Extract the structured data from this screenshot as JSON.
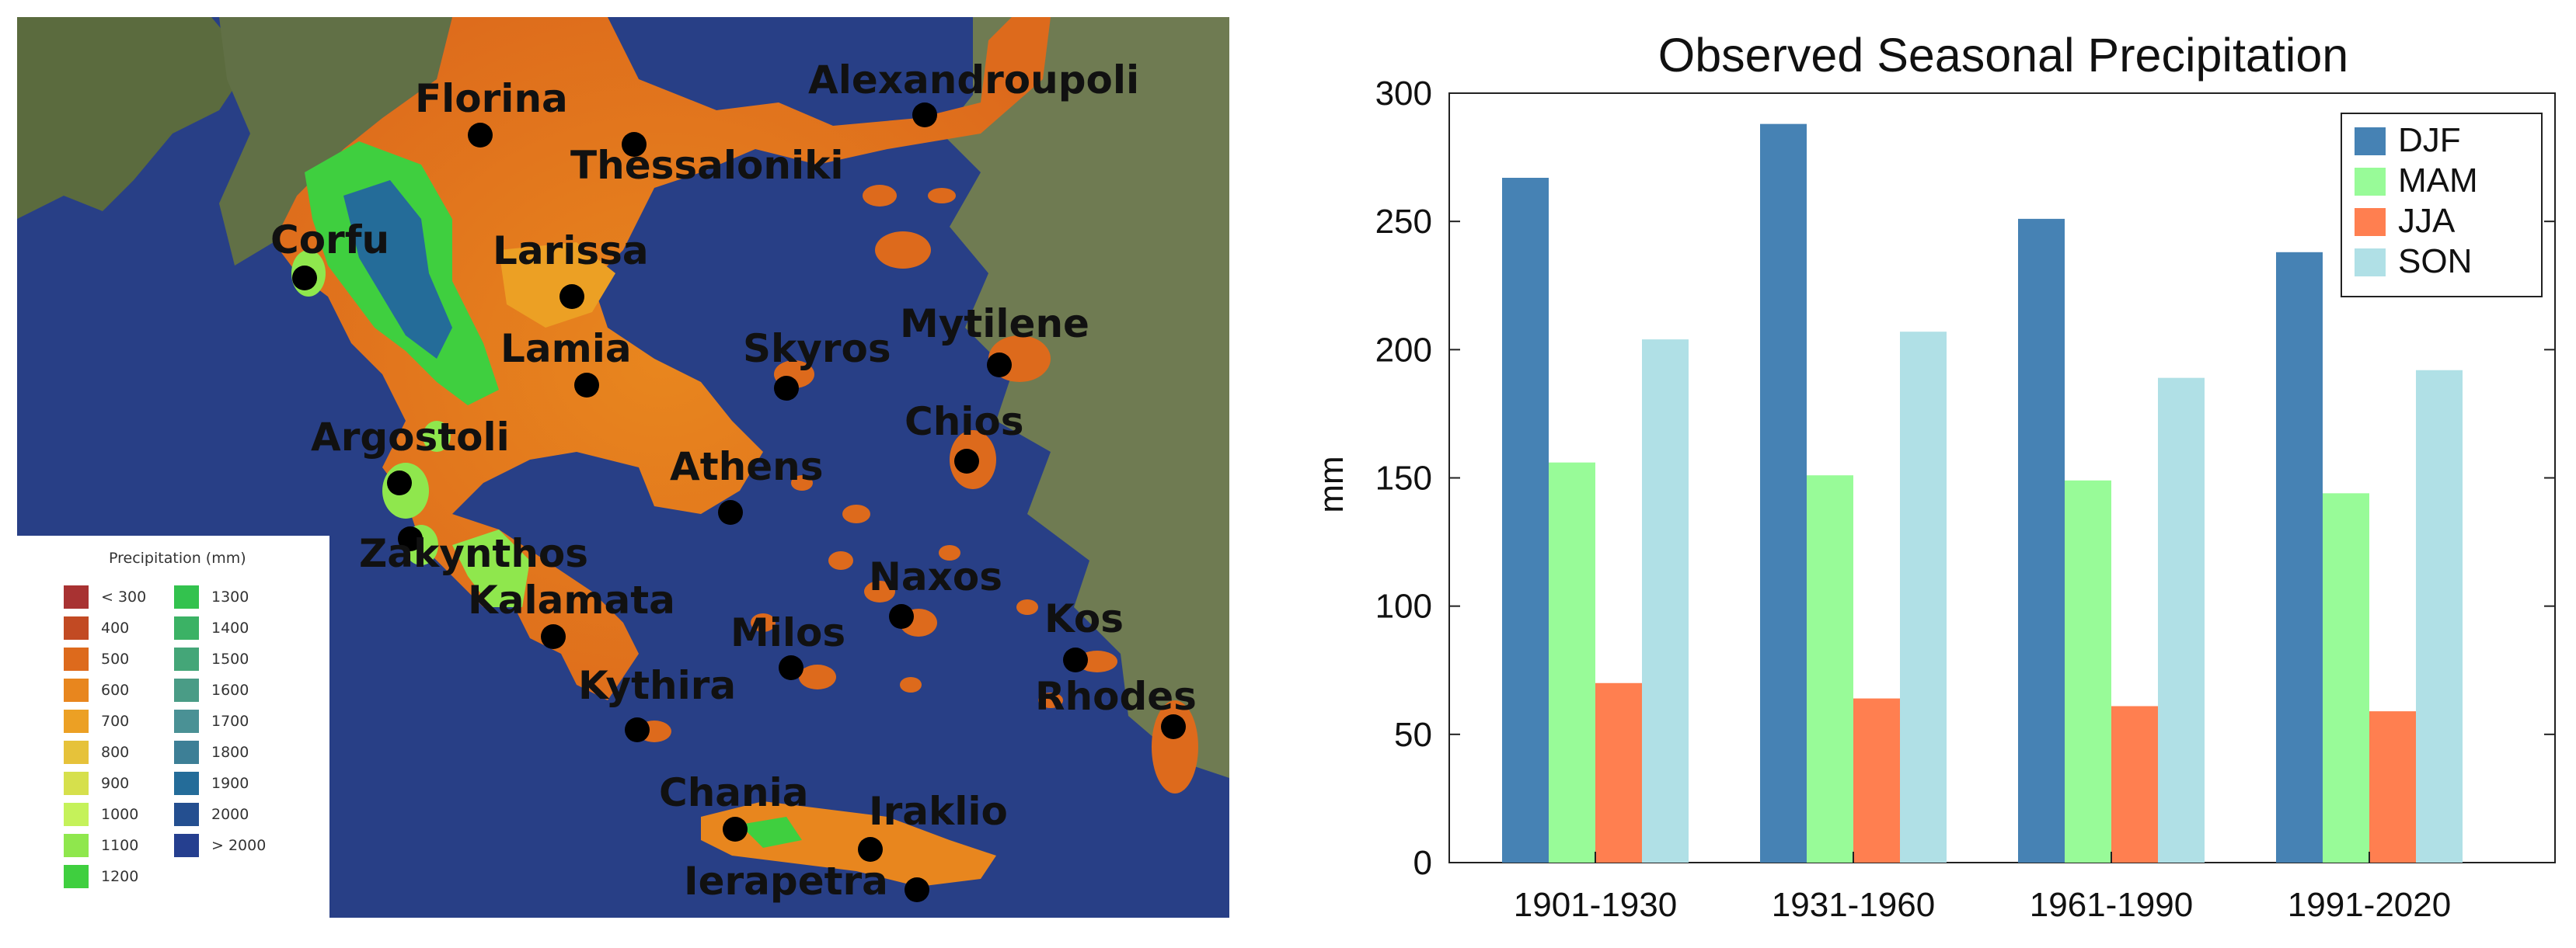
{
  "map": {
    "legend": {
      "title": "Precipitation (mm)",
      "column1": [
        {
          "label": "< 300",
          "color": "#a83232"
        },
        {
          "label": "400",
          "color": "#c24a23"
        },
        {
          "label": "500",
          "color": "#dd6a1c"
        },
        {
          "label": "600",
          "color": "#e8861e"
        },
        {
          "label": "700",
          "color": "#eca024"
        },
        {
          "label": "800",
          "color": "#e6c23a"
        },
        {
          "label": "900",
          "color": "#d6e04c"
        },
        {
          "label": "1000",
          "color": "#c5f25a"
        },
        {
          "label": "1100",
          "color": "#8fe74d"
        },
        {
          "label": "1200",
          "color": "#3fcf3f"
        }
      ],
      "column2": [
        {
          "label": "1300",
          "color": "#33c24e"
        },
        {
          "label": "1400",
          "color": "#3bb265"
        },
        {
          "label": "1500",
          "color": "#44a678"
        },
        {
          "label": "1600",
          "color": "#4a9c86"
        },
        {
          "label": "1700",
          "color": "#4a9195"
        },
        {
          "label": "1800",
          "color": "#3d7f96"
        },
        {
          "label": "1900",
          "color": "#246c99"
        },
        {
          "label": "2000",
          "color": "#244f90"
        },
        {
          "label": "> 2000",
          "color": "#253f8f"
        }
      ]
    },
    "cities": [
      "Florina",
      "Thessaloniki",
      "Alexandroupoli",
      "Corfu",
      "Larissa",
      "Lamia",
      "Skyros",
      "Mytilene",
      "Chios",
      "Argostoli",
      "Athens",
      "Zakynthos",
      "Kalamata",
      "Naxos",
      "Kos",
      "Milos",
      "Kythira",
      "Rhodes",
      "Chania",
      "Iraklio",
      "Ierapetra"
    ]
  },
  "chart_data": {
    "type": "bar",
    "title": "Observed Seasonal Precipitation",
    "xlabel": "",
    "ylabel": "mm",
    "categories": [
      "1901-1930",
      "1931-1960",
      "1961-1990",
      "1991-2020"
    ],
    "yticks": [
      0,
      50,
      100,
      150,
      200,
      250,
      300
    ],
    "ylim": [
      0,
      300
    ],
    "legend_position": "top-right",
    "series": [
      {
        "name": "DJF",
        "color": "#4682b4",
        "values": [
          267,
          288,
          251,
          238
        ]
      },
      {
        "name": "MAM",
        "color": "#98fb98",
        "values": [
          156,
          151,
          149,
          144
        ]
      },
      {
        "name": "JJA",
        "color": "#ff7f50",
        "values": [
          70,
          64,
          61,
          59
        ]
      },
      {
        "name": "SON",
        "color": "#b0e0e6",
        "values": [
          204,
          207,
          189,
          192
        ]
      }
    ]
  }
}
